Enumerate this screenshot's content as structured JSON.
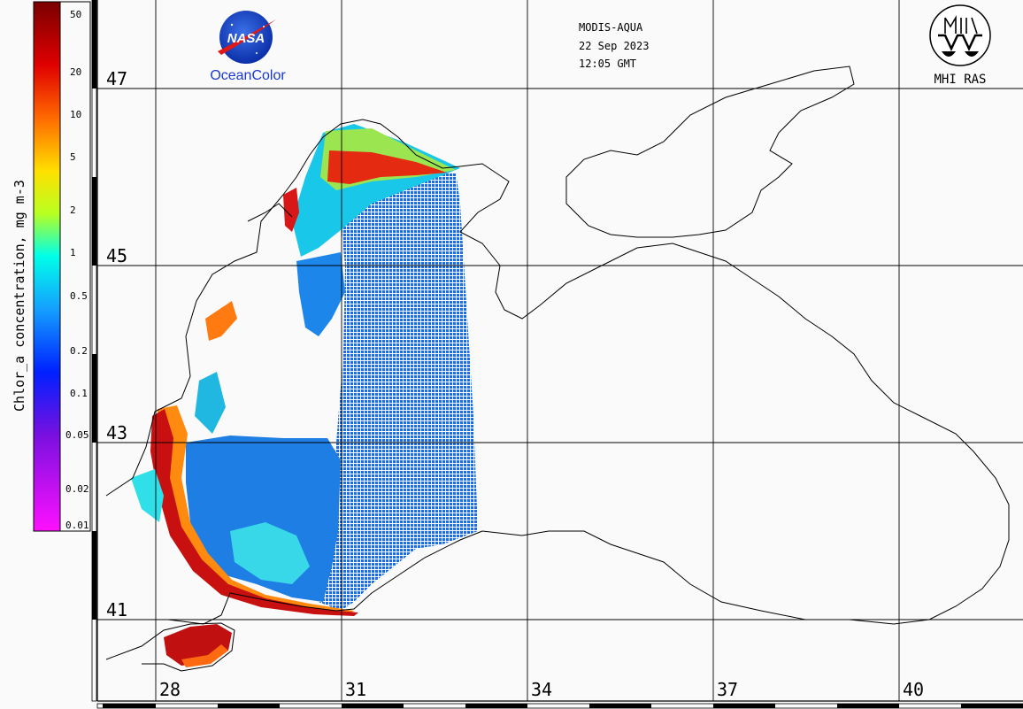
{
  "header": {
    "sensor": "MODIS-AQUA",
    "date": "22 Sep 2023",
    "time": "12:05 GMT"
  },
  "logos": {
    "nasa_text": "NASA",
    "oceancolor": "OceanColor",
    "mhi": "MHI RAS"
  },
  "colorbar": {
    "label": "Chlor_a concentration, mg m-3",
    "ticks": [
      "50",
      "20",
      "10",
      "5",
      "2",
      "1",
      "0.5",
      "0.2",
      "0.1",
      "0.05",
      "0.02",
      "0.01"
    ],
    "scale": "log",
    "colors": [
      "#8b0000",
      "#ff0000",
      "#ff8c00",
      "#ffff00",
      "#7fff00",
      "#00ffff",
      "#1e90ff",
      "#0000ff",
      "#8a2be2",
      "#ff00ff"
    ]
  },
  "grid": {
    "lat_labels": [
      "47",
      "45",
      "43",
      "41"
    ],
    "lon_labels": [
      "28",
      "31",
      "34",
      "37",
      "40"
    ]
  }
}
